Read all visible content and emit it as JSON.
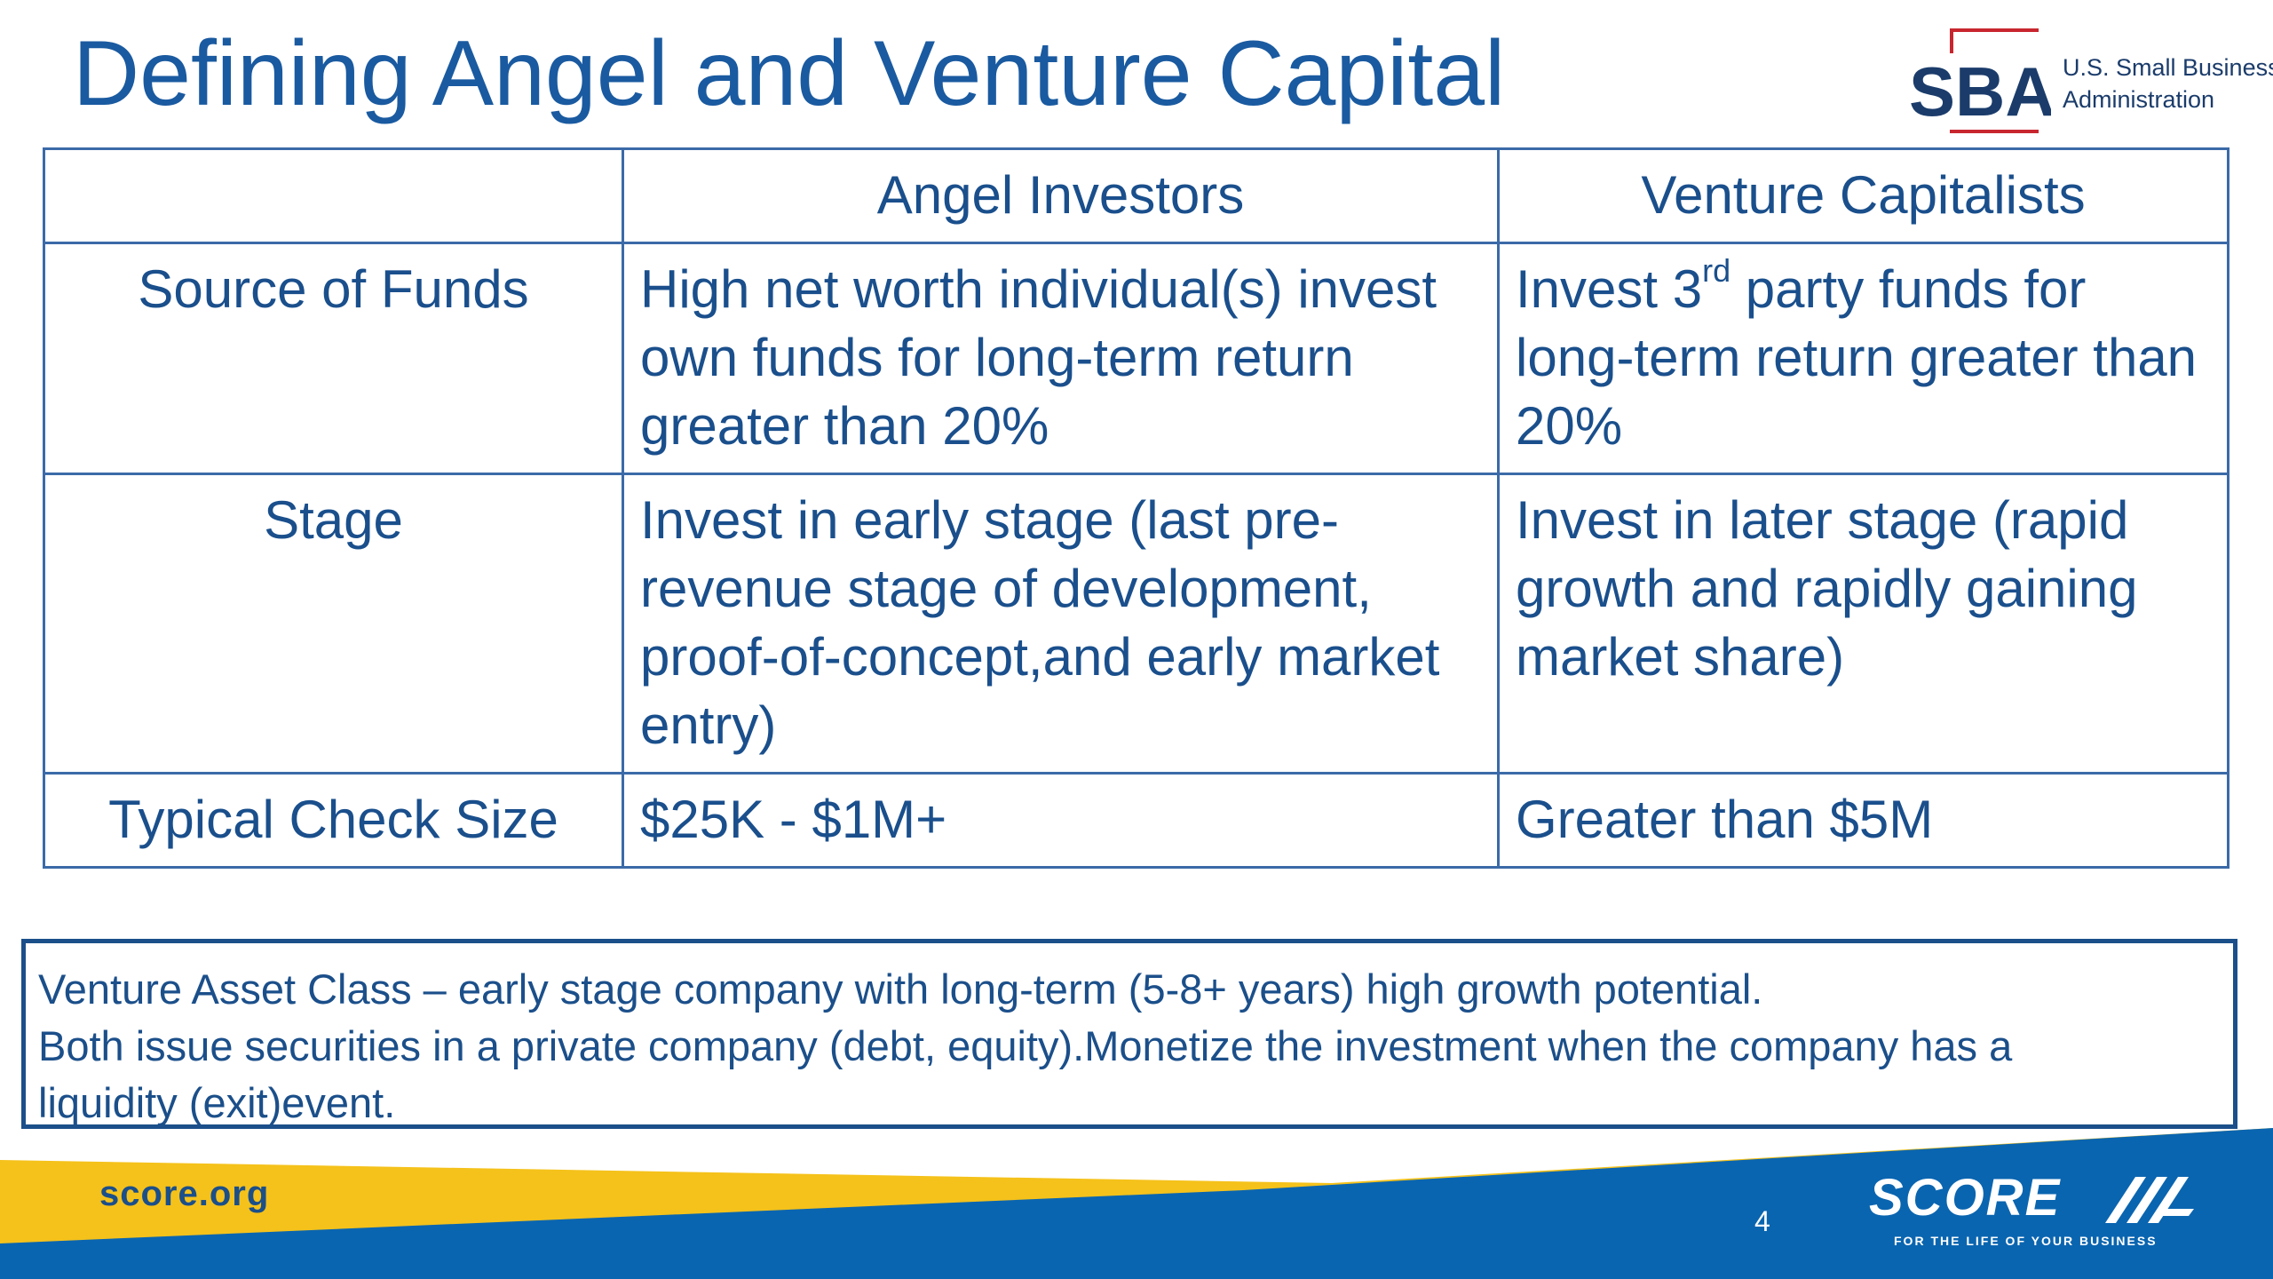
{
  "slide": {
    "title": "Defining Angel and Venture Capital",
    "page_number": "4"
  },
  "sba_logo": {
    "letters": "SBA",
    "line1": "U.S. Small Business",
    "line2": "Administration",
    "icon": "sba-logo-icon"
  },
  "table": {
    "headers": [
      "",
      "Angel Investors",
      "Venture Capitalists"
    ],
    "rows": [
      {
        "label": "Source of Funds",
        "angel": "High net worth individual(s) invest own funds for long-term return greater than 20%",
        "vc": {
          "pre": "Invest 3",
          "sup": "rd",
          "post": " party funds for long-term return greater than 20%"
        }
      },
      {
        "label": "Stage",
        "angel": "Invest in early stage (last pre-revenue stage of development, proof-of-concept,and early market entry)",
        "vc": "Invest in later stage (rapid growth and rapidly gaining market share)"
      },
      {
        "label": "Typical Check Size",
        "angel": "$25K - $1M+",
        "vc": "Greater than $5M"
      }
    ]
  },
  "note": {
    "line1": "Venture Asset Class – early stage company with long-term (5-8+ years) high growth potential.",
    "line2": "Both issue securities in a private company (debt, equity).Monetize the investment when the company has a",
    "line3": "liquidity (exit)event."
  },
  "footer": {
    "url": "score.org",
    "logo_word": "SCORE",
    "logo_tagline": "FOR THE LIFE OF YOUR BUSINESS",
    "logo_icon": "score-stripes-icon",
    "colors": {
      "yellow": "#f5c21b",
      "blue": "#0a65b0"
    }
  }
}
